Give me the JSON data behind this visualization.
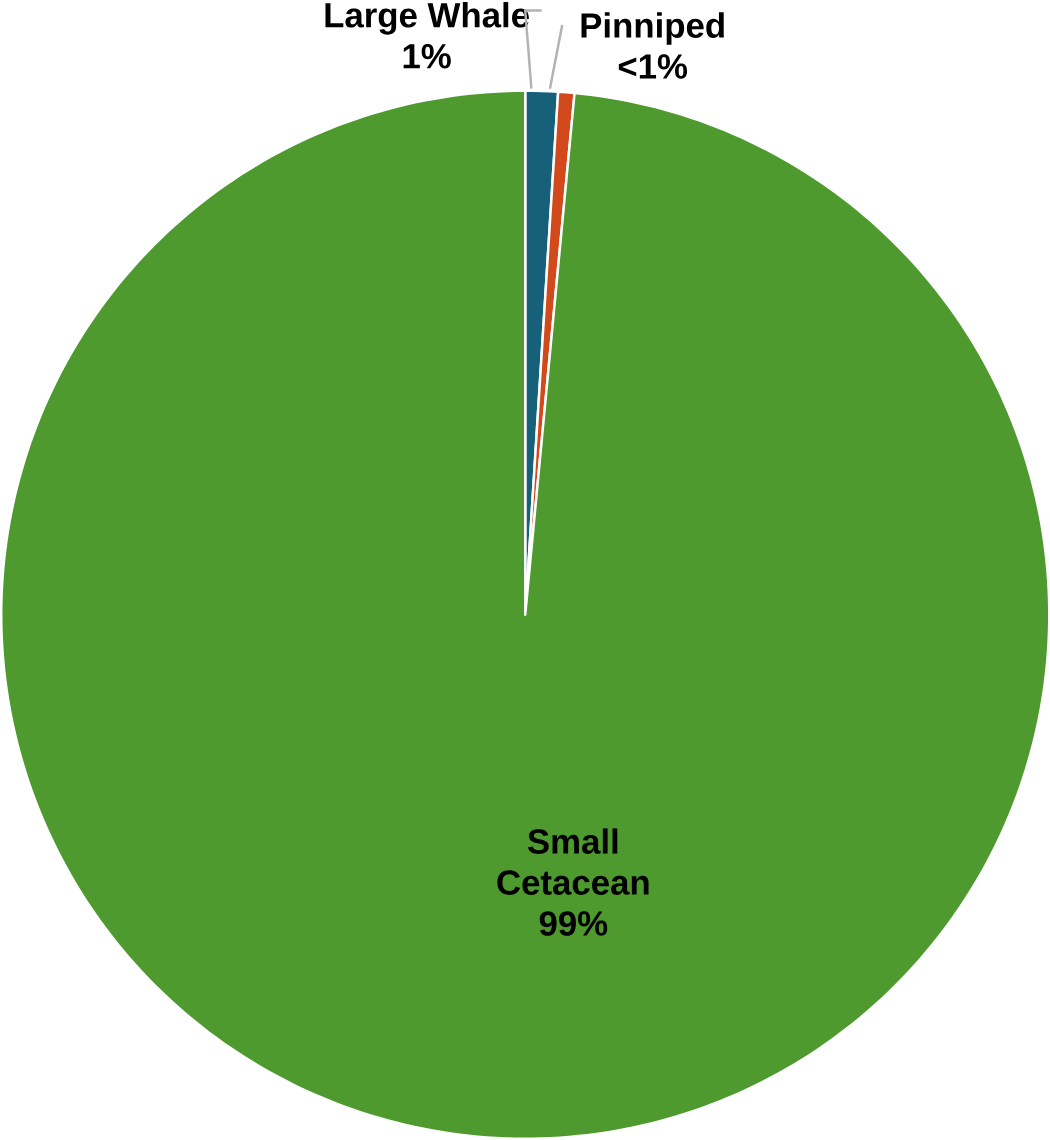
{
  "chart_data": {
    "type": "pie",
    "categories": [
      "Large Whale",
      "Pinniped",
      "Small Cetacean"
    ],
    "values": [
      1,
      0.5,
      98.5
    ],
    "colors": [
      "#17607a",
      "#d24a1c",
      "#4e9a2f"
    ],
    "value_labels": [
      "1%",
      "<1%",
      "99%"
    ]
  }
}
